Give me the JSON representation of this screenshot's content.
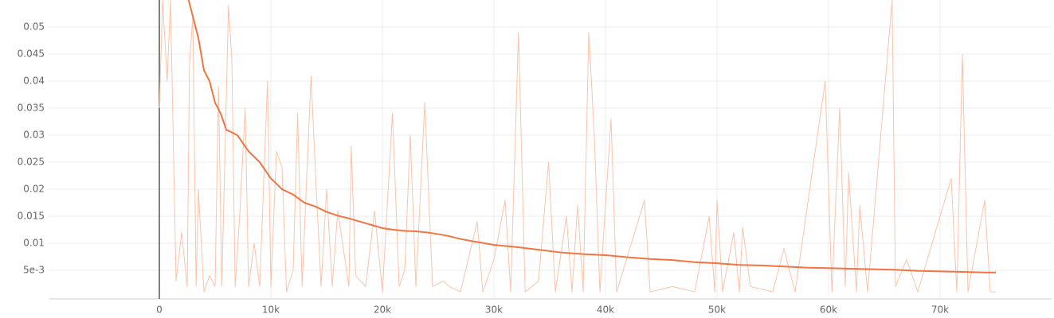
{
  "chart_data": {
    "type": "line",
    "xlim": [
      -9857,
      80000
    ],
    "ylim": [
      0,
      0.055
    ],
    "xticks": [
      0,
      {
        "value": 10000,
        "label": "10k"
      },
      {
        "value": 20000,
        "label": "20k"
      },
      {
        "value": 30000,
        "label": "30k"
      },
      {
        "value": 40000,
        "label": "40k"
      },
      {
        "value": 50000,
        "label": "50k"
      },
      {
        "value": 60000,
        "label": "60k"
      },
      {
        "value": 70000,
        "label": "70k"
      }
    ],
    "yticks": [
      {
        "value": 0.005,
        "label": "5e-3"
      },
      0.01,
      0.015,
      0.02,
      0.025,
      0.03,
      0.035,
      0.04,
      0.045,
      0.05
    ],
    "grid": true,
    "series": [
      {
        "color": "#f9c4ab",
        "x": [
          0,
          300,
          700,
          1000,
          1500,
          2000,
          2500,
          2700,
          3000,
          3300,
          3500,
          4000,
          4500,
          5000,
          5300,
          5600,
          6200,
          6500,
          6800,
          7200,
          7700,
          8000,
          8500,
          9000,
          9700,
          10000,
          10500,
          11000,
          11400,
          12000,
          12400,
          12800,
          13600,
          14000,
          14500,
          15000,
          15500,
          16000,
          17000,
          17200,
          17600,
          18500,
          19300,
          20000,
          20900,
          21500,
          22000,
          22500,
          23000,
          23800,
          24500,
          25500,
          26000,
          27000,
          28500,
          29000,
          30000,
          31000,
          31500,
          32200,
          32800,
          34000,
          34900,
          35500,
          36500,
          37000,
          37500,
          38000,
          38500,
          39000,
          39500,
          40500,
          41000,
          43500,
          44000,
          46000,
          48000,
          49300,
          49800,
          50000,
          50500,
          51500,
          52000,
          52300,
          53000,
          55000,
          56000,
          57000,
          59700,
          60300,
          61000,
          61500,
          61800,
          62500,
          62800,
          63500,
          65700,
          66000,
          67000,
          68000,
          71000,
          71500,
          72000,
          72500,
          74000,
          74500,
          75000
        ],
        "values": [
          0.035,
          0.055,
          0.04,
          0.055,
          0.003,
          0.012,
          0.002,
          0.043,
          0.052,
          0.002,
          0.02,
          0.001,
          0.004,
          0.002,
          0.039,
          0.002,
          0.054,
          0.044,
          0.002,
          0.015,
          0.035,
          0.002,
          0.01,
          0.002,
          0.04,
          0.002,
          0.027,
          0.024,
          0.001,
          0.005,
          0.034,
          0.002,
          0.041,
          0.023,
          0.002,
          0.02,
          0.002,
          0.016,
          0.002,
          0.028,
          0.004,
          0.002,
          0.016,
          0.001,
          0.034,
          0.002,
          0.005,
          0.03,
          0.002,
          0.036,
          0.002,
          0.003,
          0.002,
          0.001,
          0.014,
          0.001,
          0.007,
          0.018,
          0.001,
          0.049,
          0.001,
          0.003,
          0.025,
          0.001,
          0.015,
          0.001,
          0.017,
          0.001,
          0.049,
          0.03,
          0.001,
          0.033,
          0.001,
          0.018,
          0.001,
          0.002,
          0.001,
          0.015,
          0.001,
          0.018,
          0.001,
          0.012,
          0.001,
          0.013,
          0.002,
          0.001,
          0.009,
          0.001,
          0.04,
          0.001,
          0.035,
          0.002,
          0.023,
          0.001,
          0.017,
          0.001,
          0.055,
          0.002,
          0.007,
          0.001,
          0.022,
          0.001,
          0.045,
          0.001,
          0.018,
          0.001,
          0.001
        ]
      },
      {
        "color": "#f27441",
        "x": [
          2000,
          3500,
          4000,
          4500,
          5000,
          5500,
          6000,
          7000,
          8000,
          9000,
          10000,
          11000,
          12000,
          13000,
          14000,
          15000,
          16000,
          17000,
          18000,
          19000,
          20000,
          21000,
          22000,
          23000,
          24000,
          25000,
          26000,
          27000,
          28000,
          30000,
          32000,
          34000,
          36000,
          38000,
          40000,
          42000,
          44000,
          46000,
          48000,
          50000,
          52000,
          54000,
          56000,
          58000,
          60000,
          62000,
          64000,
          66000,
          68000,
          70000,
          72000,
          74000,
          75000
        ],
        "values": [
          0.06,
          0.048,
          0.042,
          0.04,
          0.036,
          0.034,
          0.031,
          0.03,
          0.027,
          0.025,
          0.022,
          0.02,
          0.019,
          0.0175,
          0.0168,
          0.0158,
          0.0151,
          0.0146,
          0.014,
          0.0134,
          0.0128,
          0.0125,
          0.0123,
          0.0122,
          0.012,
          0.0117,
          0.0113,
          0.0108,
          0.0104,
          0.0097,
          0.0093,
          0.0088,
          0.0083,
          0.008,
          0.0078,
          0.0074,
          0.0071,
          0.0069,
          0.0065,
          0.0063,
          0.006,
          0.0059,
          0.0057,
          0.0055,
          0.0054,
          0.0053,
          0.0052,
          0.0051,
          0.0049,
          0.0048,
          0.0047,
          0.0046,
          0.0046
        ]
      }
    ]
  }
}
